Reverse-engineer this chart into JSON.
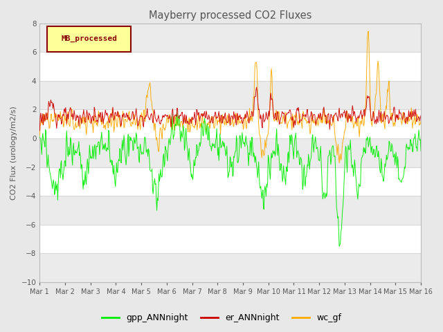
{
  "title": "Mayberry processed CO2 Fluxes",
  "ylabel": "CO2 Flux (urology/m2/s)",
  "ylim": [
    -10,
    8
  ],
  "yticks": [
    -10,
    -8,
    -6,
    -4,
    -2,
    0,
    2,
    4,
    6,
    8
  ],
  "xtick_labels": [
    "Mar 1",
    "Mar 2",
    "Mar 3",
    "Mar 4",
    "Mar 5",
    "Mar 6",
    "Mar 7",
    "Mar 8",
    "Mar 9",
    "Mar 10",
    "Mar 11",
    "Mar 12",
    "Mar 13",
    "Mar 14",
    "Mar 15",
    "Mar 16"
  ],
  "n_days": 15,
  "n_points_per_day": 48,
  "legend_box_label": "MB_processed",
  "legend_box_color": "#ffff99",
  "legend_box_edge_color": "#880000",
  "legend_entries": [
    "gpp_ANNnight",
    "er_ANNnight",
    "wc_gf"
  ],
  "line_colors": [
    "#00ee00",
    "#cc0000",
    "#ffaa00"
  ],
  "background_color": "#e8e8e8",
  "plot_bg_color": "#ffffff",
  "grid_color": "#d8d8d8",
  "title_color": "#555555",
  "label_color": "#555555",
  "tick_color": "#555555"
}
